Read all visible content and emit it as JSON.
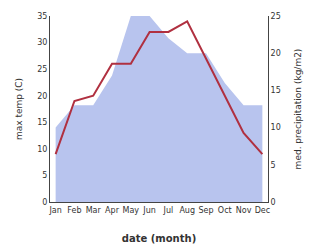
{
  "chart_data": {
    "type": "line",
    "xlabel": "date (month)",
    "ylabel": "max temp (C)",
    "y2label": "med. precipitation (kg/m2)",
    "categories": [
      "Jan",
      "Feb",
      "Mar",
      "Apr",
      "May",
      "Jun",
      "Jul",
      "Aug",
      "Sep",
      "Oct",
      "Nov",
      "Dec"
    ],
    "series": [
      {
        "type": "area",
        "axis": "y2",
        "color": "#b8c4ee",
        "values": [
          10,
          13,
          13,
          17,
          25,
          25,
          22,
          20,
          20,
          16,
          13,
          13
        ]
      },
      {
        "type": "line",
        "color": "#b03040",
        "values": [
          9,
          19,
          20,
          26,
          26,
          32,
          32,
          34,
          27,
          20,
          13,
          9
        ]
      }
    ],
    "ylim": [
      0,
      35
    ],
    "yticks": [
      0,
      5,
      10,
      15,
      20,
      25,
      30,
      35
    ],
    "y2lim": [
      0,
      25
    ],
    "y2ticks": [
      0,
      5,
      10,
      15,
      20,
      25
    ],
    "grid": false
  }
}
